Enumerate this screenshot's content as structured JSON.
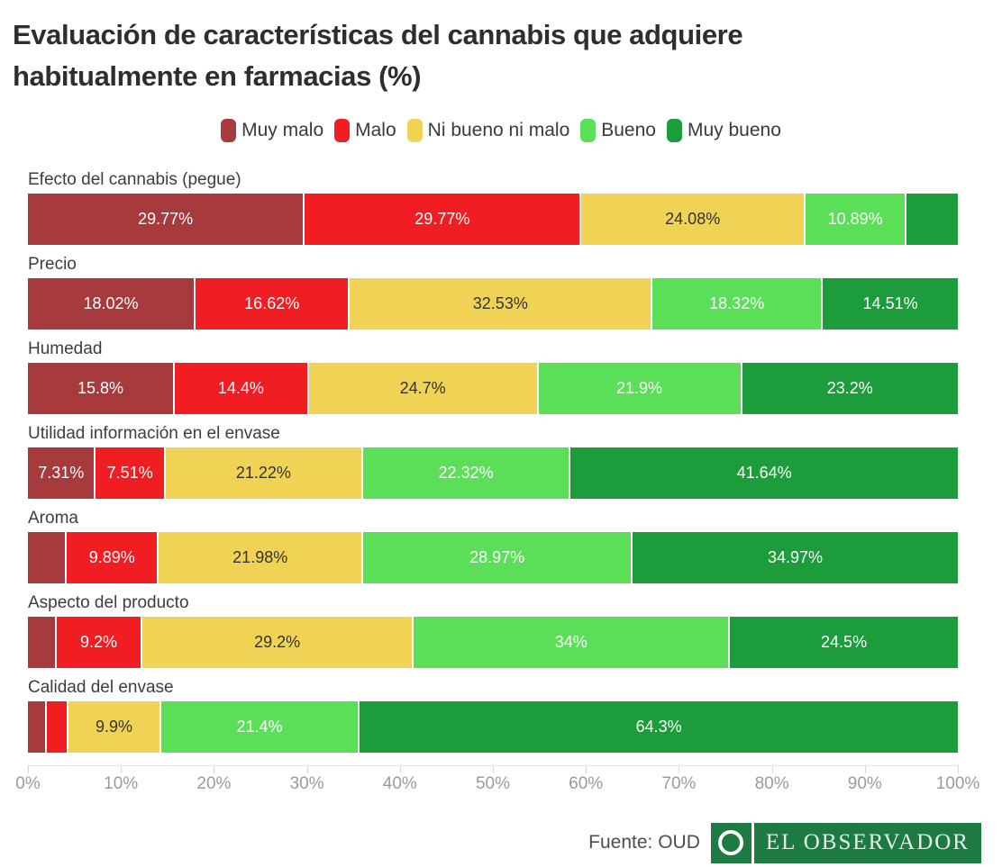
{
  "header": {
    "title": "Evaluación de características del cannabis que adquiere habitualmente en farmacias (%)"
  },
  "chart_data": {
    "type": "bar",
    "variant": "horizontal-stacked",
    "stacked": true,
    "xlim": [
      0,
      100
    ],
    "x_unit": "%",
    "grid": false,
    "legend_position": "top-center",
    "x_ticks": [
      "0%",
      "10%",
      "20%",
      "30%",
      "40%",
      "50%",
      "60%",
      "70%",
      "80%",
      "90%",
      "100%"
    ],
    "series_names": [
      "Muy malo",
      "Malo",
      "Ni bueno ni malo",
      "Bueno",
      "Muy bueno"
    ],
    "series_colors": [
      "#a63a3d",
      "#f01e23",
      "#f0d355",
      "#5cdf58",
      "#1d9c3c"
    ],
    "value_label_colors": [
      "#ffffff",
      "#ffffff",
      "#333333",
      "#ffffff",
      "#ffffff"
    ],
    "categories": [
      "Efecto del cannabis (pegue)",
      "Precio",
      "Humedad",
      "Utilidad información en el envase",
      "Aroma",
      "Aspecto del producto",
      "Calidad del envase"
    ],
    "rows": [
      {
        "category": "Efecto del cannabis (pegue)",
        "values": [
          29.77,
          29.77,
          24.08,
          10.89,
          5.49
        ],
        "labels": [
          "29.77%",
          "29.77%",
          "24.08%",
          "10.89%",
          ""
        ]
      },
      {
        "category": "Precio",
        "values": [
          18.02,
          16.62,
          32.53,
          18.32,
          14.51
        ],
        "labels": [
          "18.02%",
          "16.62%",
          "32.53%",
          "18.32%",
          "14.51%"
        ]
      },
      {
        "category": "Humedad",
        "values": [
          15.8,
          14.4,
          24.7,
          21.9,
          23.2
        ],
        "labels": [
          "15.8%",
          "14.4%",
          "24.7%",
          "21.9%",
          "23.2%"
        ]
      },
      {
        "category": "Utilidad información en el envase",
        "values": [
          7.31,
          7.51,
          21.22,
          22.32,
          41.64
        ],
        "labels": [
          "7.31%",
          "7.51%",
          "21.22%",
          "22.32%",
          "41.64%"
        ]
      },
      {
        "category": "Aroma",
        "values": [
          4.19,
          9.89,
          21.98,
          28.97,
          34.97
        ],
        "labels": [
          "",
          "9.89%",
          "21.98%",
          "28.97%",
          "34.97%"
        ]
      },
      {
        "category": "Aspecto del producto",
        "values": [
          3.1,
          9.2,
          29.2,
          34,
          24.5
        ],
        "labels": [
          "",
          "9.2%",
          "29.2%",
          "34%",
          "24.5%"
        ]
      },
      {
        "category": "Calidad del envase",
        "values": [
          2.0,
          2.4,
          9.9,
          21.4,
          64.3
        ],
        "labels": [
          "",
          "",
          "9.9%",
          "21.4%",
          "64.3%"
        ]
      }
    ]
  },
  "footer": {
    "source_label": "Fuente: OUD",
    "brand_name": "EL OBSERVADOR",
    "brand_color": "#1c7a42"
  }
}
